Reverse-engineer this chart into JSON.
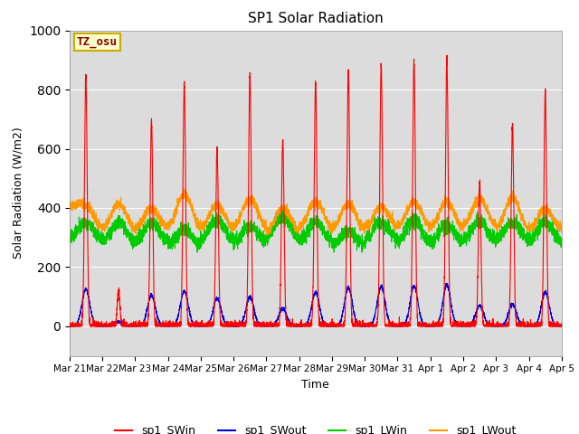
{
  "title": "SP1 Solar Radiation",
  "xlabel": "Time",
  "ylabel": "Solar Radiation (W/m2)",
  "ylim": [
    -100,
    1000
  ],
  "bg_color": "#dcdcdc",
  "annotation_text": "TZ_osu",
  "annotation_facecolor": "#ffffcc",
  "annotation_edgecolor": "#ccaa00",
  "annotation_textcolor": "#880000",
  "x_tick_labels": [
    "Mar 21",
    "Mar 22",
    "Mar 23",
    "Mar 24",
    "Mar 25",
    "Mar 26",
    "Mar 27",
    "Mar 28",
    "Mar 29",
    "Mar 30",
    "Mar 31",
    "Apr 1",
    "Apr 2",
    "Apr 3",
    "Apr 4",
    "Apr 5"
  ],
  "series_colors": {
    "sp1_SWin": "#ff0000",
    "sp1_SWout": "#0000dd",
    "sp1_LWin": "#00cc00",
    "sp1_LWout": "#ff9900"
  },
  "legend_labels": [
    "sp1_SWin",
    "sp1_SWout",
    "sp1_LWin",
    "sp1_LWout"
  ],
  "num_days": 15,
  "pts_per_day": 288,
  "sw_in_peaks": [
    850,
    120,
    700,
    820,
    600,
    855,
    630,
    825,
    870,
    880,
    895,
    900,
    490,
    685,
    800
  ],
  "sw_out_peaks": [
    125,
    15,
    105,
    120,
    95,
    100,
    60,
    115,
    130,
    135,
    135,
    140,
    70,
    75,
    115
  ],
  "lw_in_base": 310,
  "lw_out_base": 350
}
